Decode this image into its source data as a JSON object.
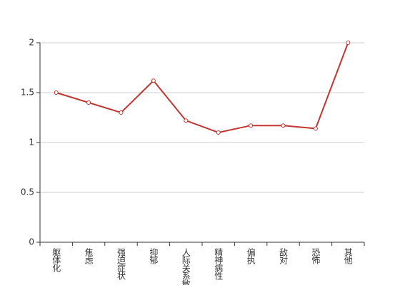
{
  "chart_data": {
    "type": "line",
    "categories": [
      "躯体化",
      "焦虑",
      "强迫症状",
      "抑郁",
      "人际关系敏感",
      "精神病性",
      "偏执",
      "敌对",
      "恐怖",
      "其他"
    ],
    "series": [
      {
        "color": "#c23531",
        "values": [
          1.5,
          1.4,
          1.3,
          1.62,
          1.22,
          1.1,
          1.17,
          1.17,
          1.14,
          2.0
        ]
      }
    ],
    "ylim": [
      0,
      2
    ],
    "yticks": [
      0,
      0.5,
      1,
      1.5,
      2
    ],
    "grid": true
  }
}
